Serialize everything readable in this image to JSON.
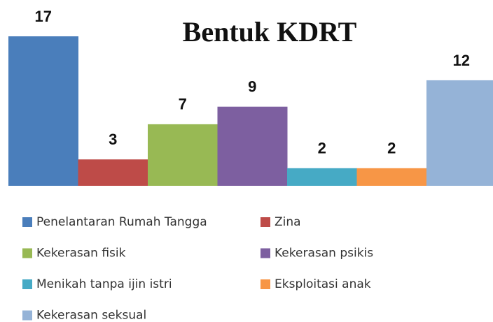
{
  "chart_data": {
    "type": "bar",
    "title": "Bentuk KDRT",
    "series": [
      {
        "name": "Penelantaran Rumah Tangga",
        "color": "#4a7ebb",
        "values": [
          17
        ]
      },
      {
        "name": "Zina",
        "color": "#be4b48",
        "values": [
          3
        ]
      },
      {
        "name": "Kekerasan fisik",
        "color": "#98b954",
        "values": [
          7
        ]
      },
      {
        "name": "Kekerasan psikis",
        "color": "#7d5fa0",
        "values": [
          9
        ]
      },
      {
        "name": "Menikah tanpa ijin istri",
        "color": "#46aac5",
        "values": [
          2
        ]
      },
      {
        "name": "Eksploitasi anak",
        "color": "#f79646",
        "values": [
          2
        ]
      },
      {
        "name": "Kekerasan seksual",
        "color": "#95b3d7",
        "values": [
          12
        ]
      }
    ]
  }
}
